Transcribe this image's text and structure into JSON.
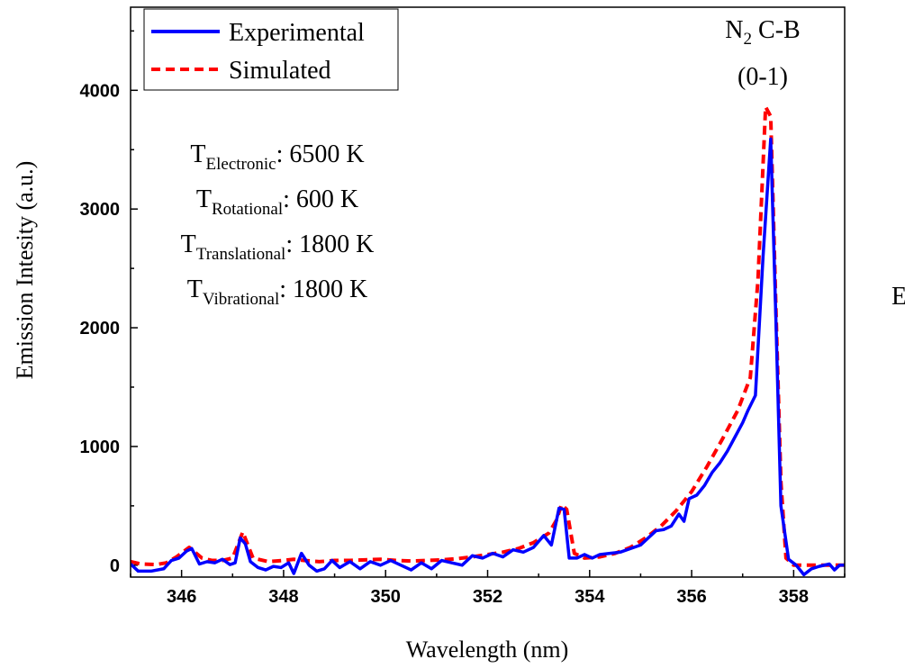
{
  "chart_data": {
    "type": "line",
    "xlabel": "Wavelength (nm)",
    "ylabel": "Emission Intesity (a.u.)",
    "xlim": [
      345,
      359
    ],
    "ylim": [
      -100,
      4700
    ],
    "x_ticks": [
      "346",
      "348",
      "350",
      "352",
      "354",
      "356",
      "358"
    ],
    "y_ticks": [
      "0",
      "1000",
      "2000",
      "3000",
      "4000"
    ],
    "legend_position": "top-left",
    "annotation": {
      "species": "N",
      "species_sub": "2",
      "band": " C-B",
      "transition": "(0-1)"
    },
    "temperatures": [
      {
        "symbol": "T",
        "sub": "Electronic",
        "value": ": 6500 K"
      },
      {
        "symbol": "T",
        "sub": "Rotational",
        "value": ": 600 K"
      },
      {
        "symbol": "T",
        "sub": "Translational",
        "value": ": 1800 K"
      },
      {
        "symbol": "T",
        "sub": "Vibrational",
        "value": ": 1800 K"
      }
    ],
    "edge_text": "E",
    "series": [
      {
        "name": "Experimental",
        "color": "#0000ff",
        "style": "solid",
        "points": [
          [
            345.0,
            10
          ],
          [
            345.15,
            -50
          ],
          [
            345.4,
            -50
          ],
          [
            345.65,
            -30
          ],
          [
            345.8,
            40
          ],
          [
            345.95,
            60
          ],
          [
            346.1,
            120
          ],
          [
            346.2,
            140
          ],
          [
            346.35,
            10
          ],
          [
            346.5,
            30
          ],
          [
            346.65,
            20
          ],
          [
            346.8,
            50
          ],
          [
            346.95,
            5
          ],
          [
            347.05,
            20
          ],
          [
            347.15,
            230
          ],
          [
            347.25,
            180
          ],
          [
            347.35,
            30
          ],
          [
            347.5,
            -20
          ],
          [
            347.65,
            -40
          ],
          [
            347.8,
            -10
          ],
          [
            347.95,
            -20
          ],
          [
            348.1,
            20
          ],
          [
            348.2,
            -70
          ],
          [
            348.35,
            100
          ],
          [
            348.5,
            0
          ],
          [
            348.65,
            -50
          ],
          [
            348.8,
            -30
          ],
          [
            348.95,
            40
          ],
          [
            349.1,
            -20
          ],
          [
            349.3,
            30
          ],
          [
            349.5,
            -30
          ],
          [
            349.7,
            30
          ],
          [
            349.9,
            0
          ],
          [
            350.1,
            40
          ],
          [
            350.3,
            0
          ],
          [
            350.5,
            -40
          ],
          [
            350.7,
            20
          ],
          [
            350.9,
            -30
          ],
          [
            351.1,
            40
          ],
          [
            351.3,
            20
          ],
          [
            351.5,
            0
          ],
          [
            351.7,
            80
          ],
          [
            351.9,
            60
          ],
          [
            352.1,
            100
          ],
          [
            352.3,
            70
          ],
          [
            352.5,
            130
          ],
          [
            352.7,
            110
          ],
          [
            352.9,
            150
          ],
          [
            353.1,
            250
          ],
          [
            353.25,
            170
          ],
          [
            353.4,
            480
          ],
          [
            353.5,
            470
          ],
          [
            353.6,
            60
          ],
          [
            353.75,
            60
          ],
          [
            353.9,
            90
          ],
          [
            354.05,
            60
          ],
          [
            354.2,
            90
          ],
          [
            354.4,
            100
          ],
          [
            354.6,
            110
          ],
          [
            354.8,
            140
          ],
          [
            355.0,
            170
          ],
          [
            355.15,
            230
          ],
          [
            355.3,
            290
          ],
          [
            355.45,
            300
          ],
          [
            355.6,
            330
          ],
          [
            355.75,
            430
          ],
          [
            355.85,
            370
          ],
          [
            355.95,
            560
          ],
          [
            356.1,
            590
          ],
          [
            356.25,
            670
          ],
          [
            356.4,
            780
          ],
          [
            356.55,
            860
          ],
          [
            356.7,
            960
          ],
          [
            356.85,
            1080
          ],
          [
            357.0,
            1200
          ],
          [
            357.1,
            1300
          ],
          [
            357.25,
            1430
          ],
          [
            357.4,
            2600
          ],
          [
            357.55,
            3590
          ],
          [
            357.65,
            2100
          ],
          [
            357.75,
            500
          ],
          [
            357.9,
            50
          ],
          [
            358.05,
            0
          ],
          [
            358.2,
            -80
          ],
          [
            358.35,
            -30
          ],
          [
            358.5,
            -10
          ],
          [
            358.7,
            10
          ],
          [
            358.8,
            -40
          ],
          [
            358.9,
            0
          ],
          [
            359.0,
            0
          ]
        ]
      },
      {
        "name": "Simulated",
        "color": "#ff0000",
        "style": "dashed",
        "points": [
          [
            345.0,
            30
          ],
          [
            345.2,
            10
          ],
          [
            345.5,
            5
          ],
          [
            345.7,
            20
          ],
          [
            345.9,
            70
          ],
          [
            346.15,
            150
          ],
          [
            346.4,
            60
          ],
          [
            346.6,
            40
          ],
          [
            346.8,
            40
          ],
          [
            347.0,
            60
          ],
          [
            347.2,
            280
          ],
          [
            347.4,
            60
          ],
          [
            347.7,
            30
          ],
          [
            348.0,
            40
          ],
          [
            348.2,
            50
          ],
          [
            348.4,
            40
          ],
          [
            348.7,
            30
          ],
          [
            349.0,
            40
          ],
          [
            349.3,
            40
          ],
          [
            349.6,
            45
          ],
          [
            349.9,
            50
          ],
          [
            350.2,
            40
          ],
          [
            350.5,
            35
          ],
          [
            350.8,
            40
          ],
          [
            351.1,
            45
          ],
          [
            351.4,
            55
          ],
          [
            351.7,
            70
          ],
          [
            352.0,
            90
          ],
          [
            352.3,
            110
          ],
          [
            352.6,
            140
          ],
          [
            352.9,
            190
          ],
          [
            353.2,
            270
          ],
          [
            353.35,
            380
          ],
          [
            353.45,
            510
          ],
          [
            353.55,
            470
          ],
          [
            353.7,
            100
          ],
          [
            353.9,
            60
          ],
          [
            354.2,
            70
          ],
          [
            354.5,
            100
          ],
          [
            354.8,
            150
          ],
          [
            355.1,
            230
          ],
          [
            355.4,
            330
          ],
          [
            355.7,
            460
          ],
          [
            356.0,
            620
          ],
          [
            356.3,
            830
          ],
          [
            356.6,
            1060
          ],
          [
            356.9,
            1300
          ],
          [
            357.15,
            1580
          ],
          [
            357.3,
            2400
          ],
          [
            357.45,
            3860
          ],
          [
            357.55,
            3780
          ],
          [
            357.65,
            2200
          ],
          [
            357.75,
            700
          ],
          [
            357.85,
            60
          ],
          [
            358.0,
            0
          ],
          [
            358.3,
            0
          ],
          [
            358.6,
            0
          ],
          [
            358.8,
            0
          ],
          [
            359.0,
            0
          ]
        ]
      }
    ]
  }
}
